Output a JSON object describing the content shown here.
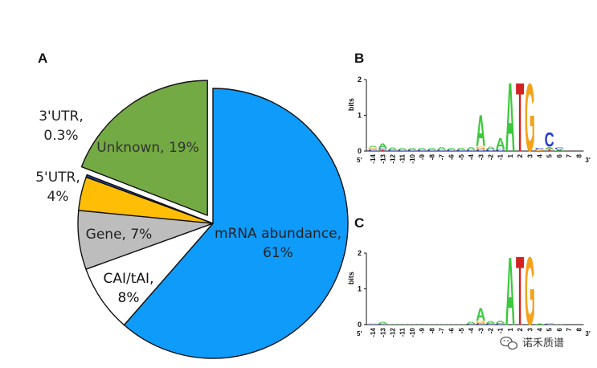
{
  "panels": {
    "a": "A",
    "b": "B",
    "c": "C"
  },
  "watermark": {
    "text": "诺禾质谱",
    "icon": "wechat-icon"
  },
  "chart_data": [
    {
      "type": "pie",
      "slices": [
        {
          "name": "mRNA abundance",
          "value": 61,
          "label_lines": [
            "mRNA abundance,",
            "61%"
          ],
          "color": "#0f9bfa",
          "text_color": "#222222",
          "exploded": false
        },
        {
          "name": "CAI/tAI",
          "value": 8,
          "label_lines": [
            "CAI/tAI,",
            "8%"
          ],
          "color": "#ffffff",
          "text_color": "#111111",
          "exploded": false
        },
        {
          "name": "Gene",
          "value": 7,
          "label_lines": [
            "Gene, 7%"
          ],
          "color": "#bdbdbd",
          "text_color": "#222222",
          "exploded": false
        },
        {
          "name": "5'UTR",
          "value": 4,
          "label_lines": [
            "5'UTR,",
            "4%"
          ],
          "color": "#ffbd05",
          "text_color": "#222222",
          "exploded": false
        },
        {
          "name": "3'UTR",
          "value": 0.3,
          "label_lines": [
            "3'UTR,",
            "0.3%"
          ],
          "color": "#1e3f9c",
          "text_color": "#222222",
          "exploded": false
        },
        {
          "name": "Unknown",
          "value": 19,
          "label_lines": [
            "Unknown, 19%"
          ],
          "color": "#74aa43",
          "text_color": "#333333",
          "exploded": true
        }
      ]
    },
    {
      "type": "sequence_logo",
      "panel": "B",
      "ylabel": "bits",
      "ylim": [
        0,
        2
      ],
      "yticks": [
        "0",
        "1",
        "2"
      ],
      "x_start": "5'",
      "x_end": "3'",
      "positions": [
        "-14",
        "-13",
        "-12",
        "-11",
        "-10",
        "-9",
        "-8",
        "-7",
        "-6",
        "-5",
        "-4",
        "-3",
        "-2",
        "-1",
        "1",
        "2",
        "3",
        "4",
        "5",
        "6",
        "7",
        "8"
      ],
      "letters": [
        {
          "pos": "-14",
          "stack": [
            [
              "C",
              0.05
            ],
            [
              "G",
              0.05
            ],
            [
              "A",
              0.05
            ]
          ]
        },
        {
          "pos": "-13",
          "stack": [
            [
              "T",
              0.03
            ],
            [
              "C",
              0.05
            ],
            [
              "A",
              0.13
            ]
          ]
        },
        {
          "pos": "-12",
          "stack": [
            [
              "C",
              0.04
            ],
            [
              "A",
              0.06
            ]
          ]
        },
        {
          "pos": "-11",
          "stack": [
            [
              "C",
              0.04
            ],
            [
              "A",
              0.05
            ]
          ]
        },
        {
          "pos": "-10",
          "stack": [
            [
              "C",
              0.04
            ],
            [
              "A",
              0.05
            ]
          ]
        },
        {
          "pos": "-9",
          "stack": [
            [
              "C",
              0.04
            ],
            [
              "A",
              0.05
            ]
          ]
        },
        {
          "pos": "-8",
          "stack": [
            [
              "C",
              0.04
            ],
            [
              "A",
              0.05
            ]
          ]
        },
        {
          "pos": "-7",
          "stack": [
            [
              "C",
              0.04
            ],
            [
              "A",
              0.08
            ]
          ]
        },
        {
          "pos": "-6",
          "stack": [
            [
              "C",
              0.04
            ],
            [
              "A",
              0.05
            ]
          ]
        },
        {
          "pos": "-5",
          "stack": [
            [
              "C",
              0.04
            ],
            [
              "A",
              0.04
            ]
          ]
        },
        {
          "pos": "-4",
          "stack": [
            [
              "C",
              0.04
            ],
            [
              "A",
              0.07
            ]
          ]
        },
        {
          "pos": "-3",
          "stack": [
            [
              "C",
              0.06
            ],
            [
              "G",
              0.08
            ],
            [
              "A",
              0.9
            ]
          ]
        },
        {
          "pos": "-2",
          "stack": [
            [
              "C",
              0.06
            ],
            [
              "A",
              0.08
            ]
          ]
        },
        {
          "pos": "-1",
          "stack": [
            [
              "C",
              0.06
            ],
            [
              "A",
              0.32
            ]
          ]
        },
        {
          "pos": "1",
          "stack": [
            [
              "A",
              1.98
            ]
          ]
        },
        {
          "pos": "2",
          "stack": [
            [
              "T",
              1.98
            ]
          ]
        },
        {
          "pos": "3",
          "stack": [
            [
              "G",
              1.96
            ]
          ]
        },
        {
          "pos": "4",
          "stack": [
            [
              "G",
              0.04
            ],
            [
              "C",
              0.04
            ]
          ]
        },
        {
          "pos": "5",
          "stack": [
            [
              "T",
              0.06
            ],
            [
              "A",
              0.06
            ],
            [
              "C",
              0.4
            ]
          ]
        },
        {
          "pos": "6",
          "stack": [
            [
              "A",
              0.05
            ],
            [
              "C",
              0.06
            ]
          ]
        },
        {
          "pos": "7",
          "stack": []
        },
        {
          "pos": "8",
          "stack": []
        }
      ]
    },
    {
      "type": "sequence_logo",
      "panel": "C",
      "ylabel": "bits",
      "ylim": [
        0,
        2
      ],
      "yticks": [
        "0",
        "1",
        "2"
      ],
      "x_start": "5'",
      "x_end": "3'",
      "positions": [
        "-14",
        "-13",
        "-12",
        "-11",
        "-10",
        "-9",
        "-8",
        "-7",
        "-6",
        "-5",
        "-4",
        "-3",
        "-2",
        "-1",
        "1",
        "2",
        "3",
        "4",
        "5",
        "6",
        "7",
        "8"
      ],
      "letters": [
        {
          "pos": "-14",
          "stack": [
            [
              "C",
              0.02
            ],
            [
              "A",
              0.02
            ]
          ]
        },
        {
          "pos": "-13",
          "stack": [
            [
              "C",
              0.03
            ],
            [
              "A",
              0.05
            ]
          ]
        },
        {
          "pos": "-12",
          "stack": [
            [
              "A",
              0.02
            ]
          ]
        },
        {
          "pos": "-11",
          "stack": [
            [
              "A",
              0.02
            ]
          ]
        },
        {
          "pos": "-10",
          "stack": [
            [
              "A",
              0.02
            ]
          ]
        },
        {
          "pos": "-9",
          "stack": [
            [
              "A",
              0.02
            ]
          ]
        },
        {
          "pos": "-8",
          "stack": [
            [
              "A",
              0.02
            ]
          ]
        },
        {
          "pos": "-7",
          "stack": [
            [
              "A",
              0.02
            ]
          ]
        },
        {
          "pos": "-6",
          "stack": [
            [
              "A",
              0.02
            ]
          ]
        },
        {
          "pos": "-5",
          "stack": [
            [
              "A",
              0.02
            ]
          ]
        },
        {
          "pos": "-4",
          "stack": [
            [
              "C",
              0.03
            ],
            [
              "A",
              0.05
            ]
          ]
        },
        {
          "pos": "-3",
          "stack": [
            [
              "C",
              0.05
            ],
            [
              "G",
              0.06
            ],
            [
              "A",
              0.36
            ]
          ]
        },
        {
          "pos": "-2",
          "stack": [
            [
              "C",
              0.04
            ],
            [
              "A",
              0.06
            ]
          ]
        },
        {
          "pos": "-1",
          "stack": [
            [
              "C",
              0.04
            ],
            [
              "A",
              0.08
            ]
          ]
        },
        {
          "pos": "1",
          "stack": [
            [
              "A",
              1.96
            ]
          ]
        },
        {
          "pos": "2",
          "stack": [
            [
              "T",
              1.98
            ]
          ]
        },
        {
          "pos": "3",
          "stack": [
            [
              "G",
              1.96
            ]
          ]
        },
        {
          "pos": "4",
          "stack": [
            [
              "A",
              0.03
            ]
          ]
        },
        {
          "pos": "5",
          "stack": [
            [
              "C",
              0.03
            ]
          ]
        },
        {
          "pos": "6",
          "stack": [
            [
              "A",
              0.02
            ]
          ]
        },
        {
          "pos": "7",
          "stack": []
        },
        {
          "pos": "8",
          "stack": []
        }
      ]
    }
  ],
  "nucleotide_colors": {
    "A": "#3cc83c",
    "C": "#2a3fc4",
    "G": "#f4a21a",
    "T": "#d42020"
  }
}
